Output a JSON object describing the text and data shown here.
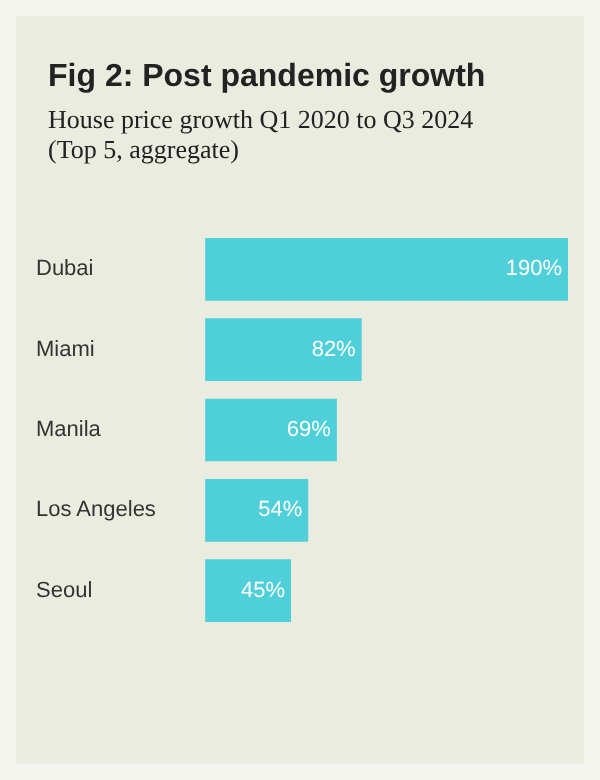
{
  "chart_data": {
    "type": "bar",
    "orientation": "horizontal",
    "title": "Fig 2: Post pandemic growth",
    "subtitle": "House price growth Q1 2020 to Q3 2024 (Top 5, aggregate)",
    "categories": [
      "Dubai",
      "Miami",
      "Manila",
      "Los Angeles",
      "Seoul"
    ],
    "values": [
      190,
      82,
      69,
      54,
      45
    ],
    "value_labels": [
      "190%",
      "82%",
      "69%",
      "54%",
      "45%"
    ],
    "color": "#4fcfd9"
  }
}
